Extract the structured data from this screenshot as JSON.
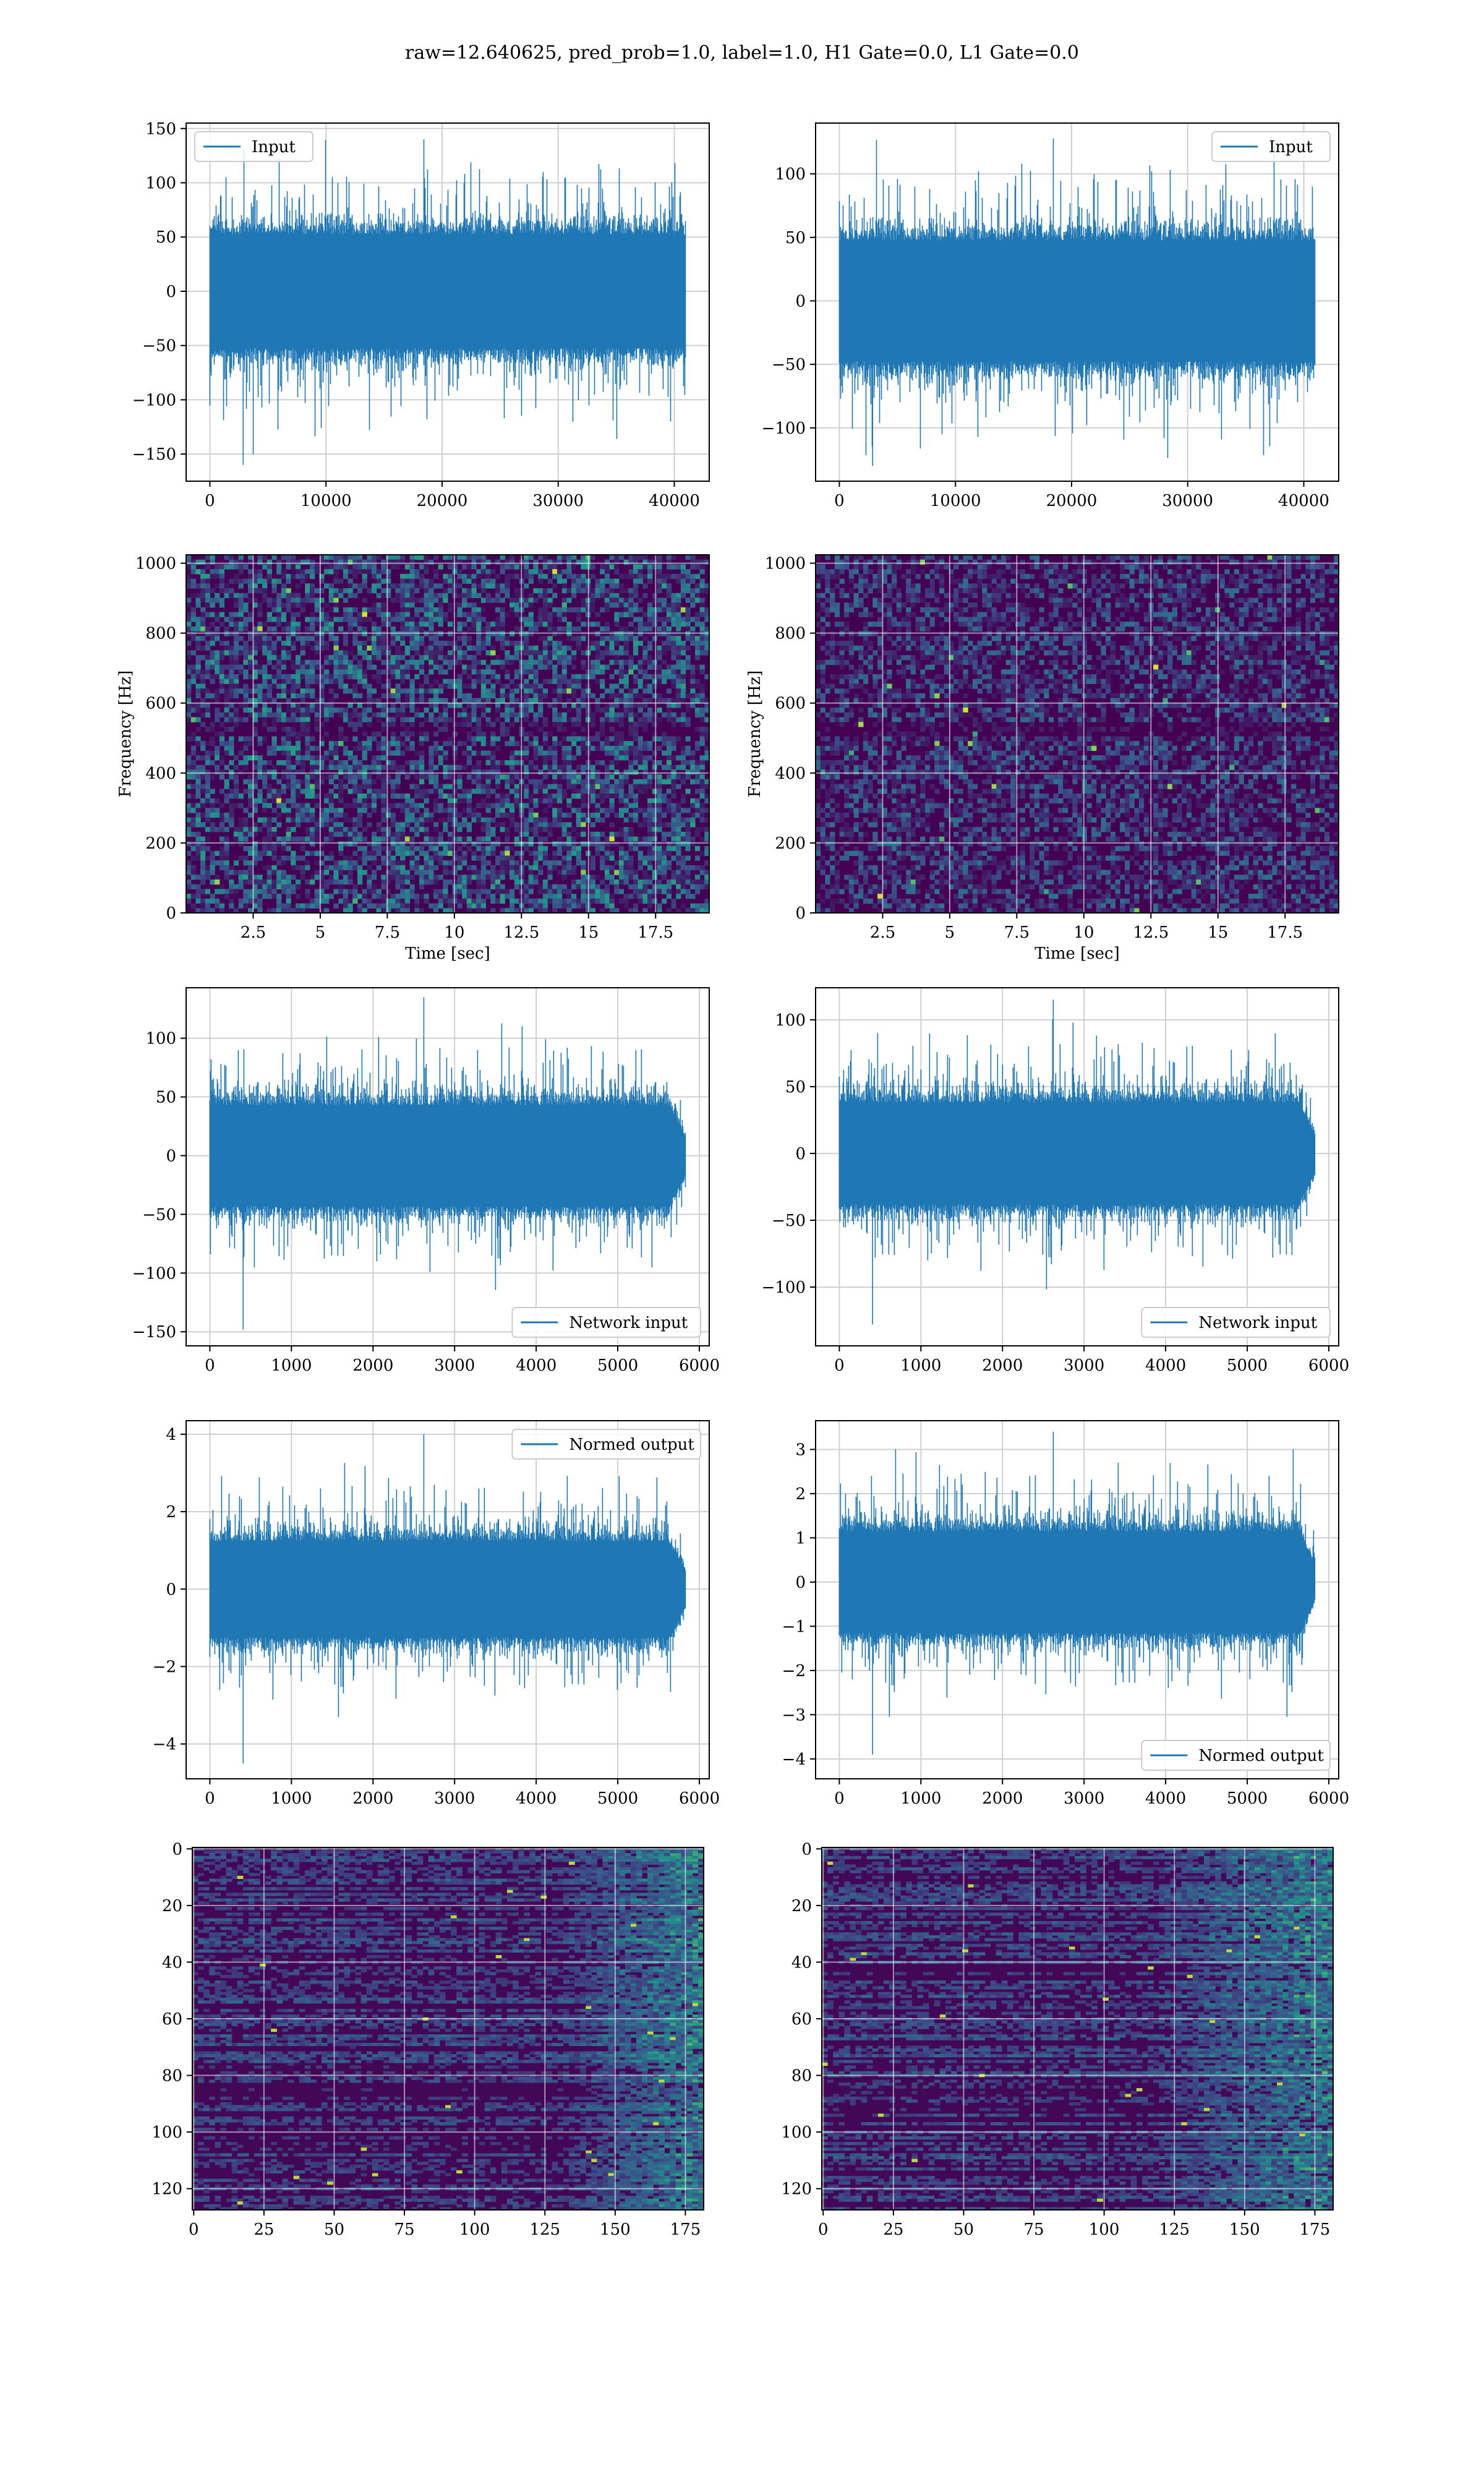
{
  "figure": {
    "suptitle": "raw=12.640625, pred_prob=1.0, label=1.0, H1 Gate=0.0, L1 Gate=0.0"
  },
  "chart_data": [
    {
      "id": "h1-input",
      "type": "line",
      "series": [
        {
          "name": "Input",
          "color": "#1f77b4",
          "summary": {
            "x_range": [
              0,
              40960
            ],
            "n_points": 40960,
            "mean": 0,
            "typical_band": [
              -55,
              55
            ],
            "extremes": [
              -160,
              140
            ]
          }
        }
      ],
      "xlim": [
        -2048,
        43008
      ],
      "ylim": [
        -175,
        155
      ],
      "xticks": [
        0,
        10000,
        20000,
        30000,
        40000
      ],
      "yticks": [
        -150,
        -100,
        -50,
        0,
        50,
        100,
        150
      ],
      "xlabel": "",
      "ylabel": "",
      "legend": "upper left",
      "grid": true
    },
    {
      "id": "l1-input",
      "type": "line",
      "series": [
        {
          "name": "Input",
          "color": "#1f77b4",
          "summary": {
            "x_range": [
              0,
              40960
            ],
            "n_points": 40960,
            "mean": 0,
            "typical_band": [
              -50,
              50
            ],
            "extremes": [
              -130,
              128
            ]
          }
        }
      ],
      "xlim": [
        -2048,
        43008
      ],
      "ylim": [
        -142,
        140
      ],
      "xticks": [
        0,
        10000,
        20000,
        30000,
        40000
      ],
      "yticks": [
        -100,
        -50,
        0,
        50,
        100
      ],
      "xlabel": "",
      "ylabel": "",
      "legend": "upper right",
      "grid": true
    },
    {
      "id": "h1-spectrogram",
      "type": "heatmap",
      "xlim": [
        0,
        19.5
      ],
      "ylim": [
        0,
        1024
      ],
      "xticks": [
        2.5,
        5.0,
        7.5,
        10.0,
        12.5,
        15.0,
        17.5
      ],
      "yticks": [
        0,
        200,
        400,
        600,
        800,
        1000
      ],
      "xlabel": "Time [sec]",
      "ylabel": "Frequency [Hz]",
      "colormap": "viridis",
      "grid": true
    },
    {
      "id": "l1-spectrogram",
      "type": "heatmap",
      "xlim": [
        0,
        19.5
      ],
      "ylim": [
        0,
        1024
      ],
      "xticks": [
        2.5,
        5.0,
        7.5,
        10.0,
        12.5,
        15.0,
        17.5
      ],
      "yticks": [
        0,
        200,
        400,
        600,
        800,
        1000
      ],
      "xlabel": "Time [sec]",
      "ylabel": "Frequency [Hz]",
      "colormap": "viridis",
      "grid": true
    },
    {
      "id": "h1-network-input",
      "type": "line",
      "series": [
        {
          "name": "Network input",
          "color": "#1f77b4",
          "summary": {
            "x_range": [
              0,
              5830
            ],
            "n_points": 5830,
            "mean": 0,
            "typical_band": [
              -45,
              45
            ],
            "extremes": [
              -148,
              135
            ]
          }
        }
      ],
      "xlim": [
        -291,
        6121
      ],
      "ylim": [
        -162,
        143
      ],
      "xticks": [
        0,
        1000,
        2000,
        3000,
        4000,
        5000,
        6000
      ],
      "yticks": [
        -150,
        -100,
        -50,
        0,
        50,
        100
      ],
      "xlabel": "",
      "ylabel": "",
      "legend": "lower right",
      "grid": true
    },
    {
      "id": "l1-network-input",
      "type": "line",
      "series": [
        {
          "name": "Network input",
          "color": "#1f77b4",
          "summary": {
            "x_range": [
              0,
              5830
            ],
            "n_points": 5830,
            "mean": 0,
            "typical_band": [
              -40,
              40
            ],
            "extremes": [
              -128,
              115
            ]
          }
        }
      ],
      "xlim": [
        -291,
        6121
      ],
      "ylim": [
        -144,
        124
      ],
      "xticks": [
        0,
        1000,
        2000,
        3000,
        4000,
        5000,
        6000
      ],
      "yticks": [
        -100,
        -50,
        0,
        50,
        100
      ],
      "xlabel": "",
      "ylabel": "",
      "legend": "lower right",
      "grid": true
    },
    {
      "id": "h1-normed-output",
      "type": "line",
      "series": [
        {
          "name": "Normed output",
          "color": "#1f77b4",
          "summary": {
            "x_range": [
              0,
              5830
            ],
            "n_points": 5830,
            "mean": 0,
            "typical_band": [
              -1.3,
              1.3
            ],
            "extremes": [
              -4.5,
              4.0
            ]
          }
        }
      ],
      "xlim": [
        -291,
        6121
      ],
      "ylim": [
        -4.9,
        4.35
      ],
      "xticks": [
        0,
        1000,
        2000,
        3000,
        4000,
        5000,
        6000
      ],
      "yticks": [
        -4,
        -2,
        0,
        2,
        4
      ],
      "xlabel": "",
      "ylabel": "",
      "legend": "upper right",
      "grid": true
    },
    {
      "id": "l1-normed-output",
      "type": "line",
      "series": [
        {
          "name": "Normed output",
          "color": "#1f77b4",
          "summary": {
            "x_range": [
              0,
              5830
            ],
            "n_points": 5830,
            "mean": 0,
            "typical_band": [
              -1.2,
              1.2
            ],
            "extremes": [
              -3.9,
              3.4
            ]
          }
        }
      ],
      "xlim": [
        -291,
        6121
      ],
      "ylim": [
        -4.45,
        3.65
      ],
      "xticks": [
        0,
        1000,
        2000,
        3000,
        4000,
        5000,
        6000
      ],
      "yticks": [
        -4,
        -3,
        -2,
        -1,
        0,
        1,
        2,
        3
      ],
      "xlabel": "",
      "ylabel": "",
      "legend": "lower right",
      "grid": true
    },
    {
      "id": "h1-feature-map",
      "type": "heatmap",
      "xlim": [
        -0.5,
        181.5
      ],
      "ylim": [
        127.5,
        -0.5
      ],
      "yaxis_inverted": true,
      "xticks": [
        0,
        25,
        50,
        75,
        100,
        125,
        150,
        175
      ],
      "yticks": [
        0,
        20,
        40,
        60,
        80,
        100,
        120
      ],
      "xlabel": "",
      "ylabel": "",
      "colormap": "viridis",
      "grid": true
    },
    {
      "id": "l1-feature-map",
      "type": "heatmap",
      "xlim": [
        -0.5,
        181.5
      ],
      "ylim": [
        127.5,
        -0.5
      ],
      "yaxis_inverted": true,
      "xticks": [
        0,
        25,
        50,
        75,
        100,
        125,
        150,
        175
      ],
      "yticks": [
        0,
        20,
        40,
        60,
        80,
        100,
        120
      ],
      "xlabel": "",
      "ylabel": "",
      "colormap": "viridis",
      "grid": true
    }
  ]
}
